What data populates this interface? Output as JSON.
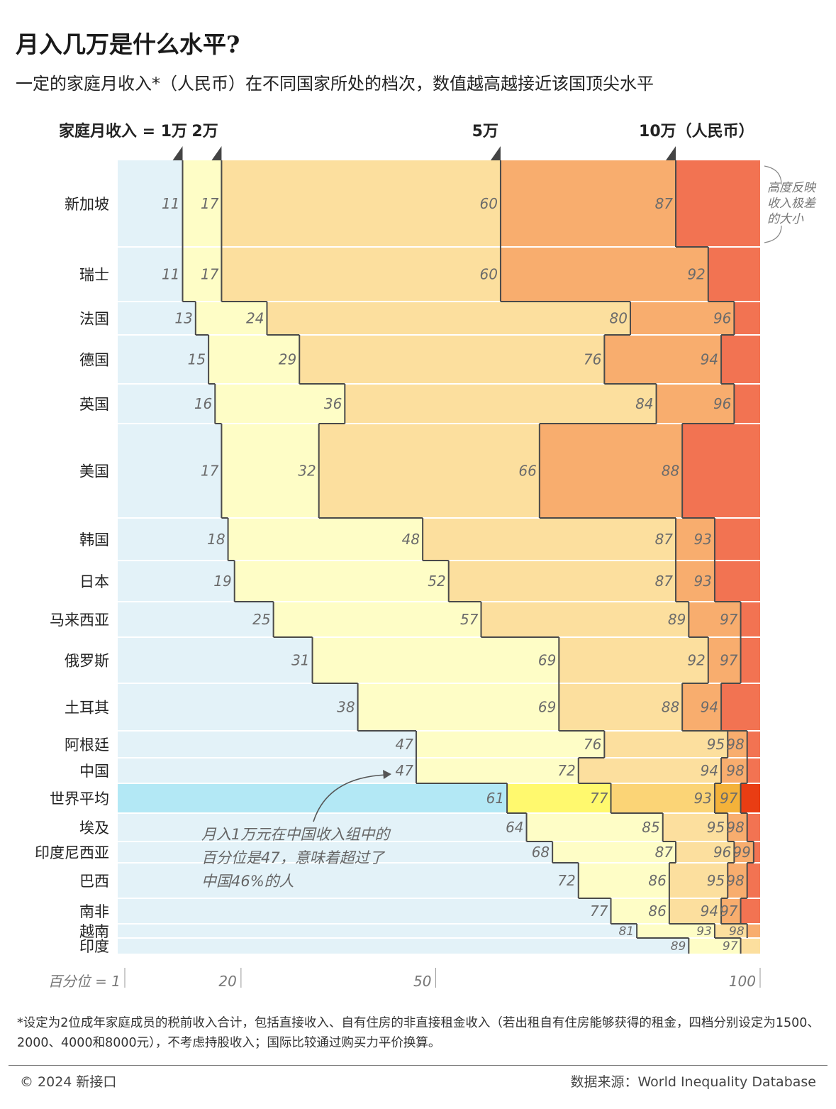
{
  "header": {
    "title": "月入几万是什么水平?",
    "subtitle": "一定的家庭月收入*（人民币）在不同国家所处的档次，数值越高越接近该国顶尖水平"
  },
  "chart_data": {
    "type": "table",
    "title": "月入几万是什么水平?",
    "subtitle": "一定的家庭月收入*（人民币）在不同国家所处的档次，数值越高越接近该国顶尖水平",
    "income_axis": {
      "label": "家庭月收入 =",
      "markers": [
        "1万",
        "2万",
        "5万",
        "10万（人民币）"
      ]
    },
    "percentile_axis": {
      "label": "百分位 = 1",
      "ticks": [
        "20",
        "50",
        "100"
      ],
      "range": [
        1,
        100
      ]
    },
    "countries": [
      {
        "name": "新加坡",
        "values": [
          11,
          17,
          60,
          87
        ]
      },
      {
        "name": "瑞士",
        "values": [
          11,
          17,
          60,
          92
        ]
      },
      {
        "name": "法国",
        "values": [
          13,
          24,
          80,
          96
        ]
      },
      {
        "name": "德国",
        "values": [
          15,
          29,
          76,
          94
        ]
      },
      {
        "name": "英国",
        "values": [
          16,
          36,
          84,
          96
        ]
      },
      {
        "name": "美国",
        "values": [
          17,
          32,
          66,
          88
        ]
      },
      {
        "name": "韩国",
        "values": [
          18,
          48,
          87,
          93
        ]
      },
      {
        "name": "日本",
        "values": [
          19,
          52,
          87,
          93
        ]
      },
      {
        "name": "马来西亚",
        "values": [
          25,
          57,
          89,
          97
        ]
      },
      {
        "name": "俄罗斯",
        "values": [
          31,
          69,
          92,
          97
        ]
      },
      {
        "name": "土耳其",
        "values": [
          38,
          69,
          88,
          94
        ]
      },
      {
        "name": "阿根廷",
        "values": [
          47,
          76,
          95,
          98
        ]
      },
      {
        "name": "中国",
        "values": [
          47,
          72,
          94,
          98
        ]
      },
      {
        "name": "世界平均",
        "values": [
          61,
          77,
          93,
          97
        ],
        "highlight": true
      },
      {
        "name": "埃及",
        "values": [
          64,
          85,
          95,
          98
        ]
      },
      {
        "name": "印度尼西亚",
        "values": [
          68,
          87,
          96,
          99
        ]
      },
      {
        "name": "巴西",
        "values": [
          72,
          86,
          95,
          98
        ]
      },
      {
        "name": "南非",
        "values": [
          77,
          86,
          94,
          97
        ]
      },
      {
        "name": "越南",
        "values": [
          81,
          93,
          98
        ]
      },
      {
        "name": "印度",
        "values": [
          89,
          97
        ]
      }
    ],
    "side_note": [
      "高度反映",
      "收入极差",
      "的大小"
    ],
    "annotation": [
      "月入1万元在中国收入组中的",
      "百分位是47，意味着超过了",
      "中国46%的人"
    ],
    "colors": {
      "band0": "#e3f2f8",
      "band1": "#fefdc6",
      "band2": "#fcdf9e",
      "band3": "#f8ad6e",
      "band4": "#f27352",
      "world_band0": "#b3e8f5",
      "world_band1": "#fff96e",
      "world_band2": "#fbd476",
      "world_band3": "#f4b23a",
      "world_band4": "#e93d13",
      "boundary": "#4a4a4a",
      "value_label": "#6b6b6b"
    }
  },
  "footer": {
    "footnote": "*设定为2位成年家庭成员的税前收入合计，包括直接收入、自有住房的非直接租金收入（若出租自有住房能够获得的租金，四档分别设定为1500、2000、4000和8000元），不考虑持股收入；国际比较通过购买力平价换算。",
    "copyright": "© 2024 新接口",
    "source": "数据来源：World Inequality Database"
  }
}
